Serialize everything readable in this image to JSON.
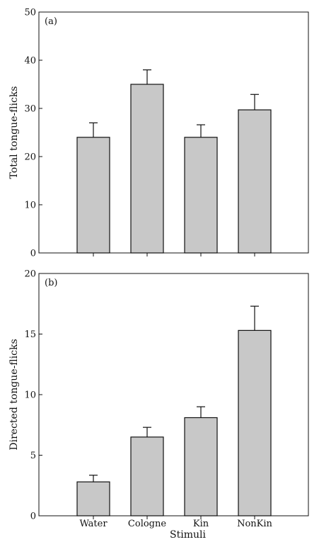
{
  "chart_data": [
    {
      "type": "bar",
      "panel_label": "(a)",
      "categories": [
        "Water",
        "Cologne",
        "Kin",
        "NonKin"
      ],
      "values": [
        24,
        35,
        24,
        29.7
      ],
      "errors": [
        3,
        3,
        2.6,
        3.2
      ],
      "xlabel": "",
      "ylabel": "Total tongue-flicks",
      "ylim": [
        0,
        50
      ],
      "yticks": [
        0,
        10,
        20,
        30,
        40,
        50
      ],
      "show_category_labels": false,
      "bar_color": "#c8c8c8",
      "grid": false
    },
    {
      "type": "bar",
      "panel_label": "(b)",
      "categories": [
        "Water",
        "Cologne",
        "Kin",
        "NonKin"
      ],
      "values": [
        2.8,
        6.5,
        8.1,
        15.3
      ],
      "errors": [
        0.55,
        0.8,
        0.9,
        2.0
      ],
      "xlabel": "Stimuli",
      "ylabel": "Directed tongue-flicks",
      "ylim": [
        0,
        20
      ],
      "yticks": [
        0,
        5,
        10,
        15,
        20
      ],
      "show_category_labels": true,
      "bar_color": "#c8c8c8",
      "grid": false
    }
  ]
}
